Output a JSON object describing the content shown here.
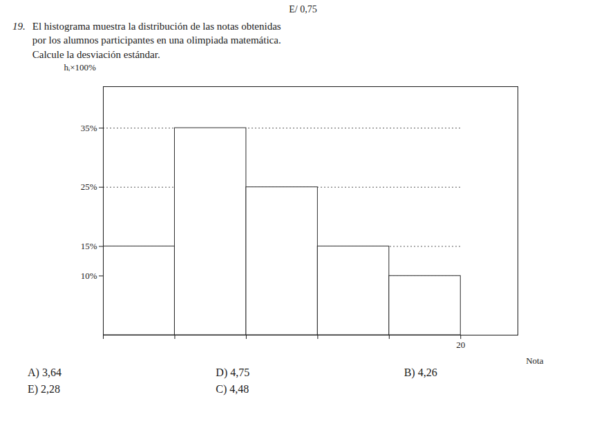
{
  "chart_data": {
    "type": "histogram",
    "title": "El histograma muestra la distribución de las notas obtenidas\npor los alumnos participantes en una olimpiada matemática.\nCalcule la desviación estándar.",
    "annotations": [
      "E/ 0,75",
      "19.",
      "A) 3,64",
      "D) 4,75",
      "B) 4,26",
      "E) 2,28",
      "C) 4,48"
    ],
    "xlabel": "Nota",
    "ylabel": "hᵢ×100%",
    "values": [
      15,
      35,
      25,
      15,
      10
    ],
    "bins": [
      null,
      null,
      null,
      null,
      null,
      20
    ],
    "ylim": [
      0,
      42
    ],
    "yticks": [
      {
        "value": 10,
        "label": "10%"
      },
      {
        "value": 15,
        "label": "15%"
      },
      {
        "value": 25,
        "label": "25%"
      },
      {
        "value": 35,
        "label": "35%"
      }
    ],
    "grid": true,
    "color": "white"
  }
}
